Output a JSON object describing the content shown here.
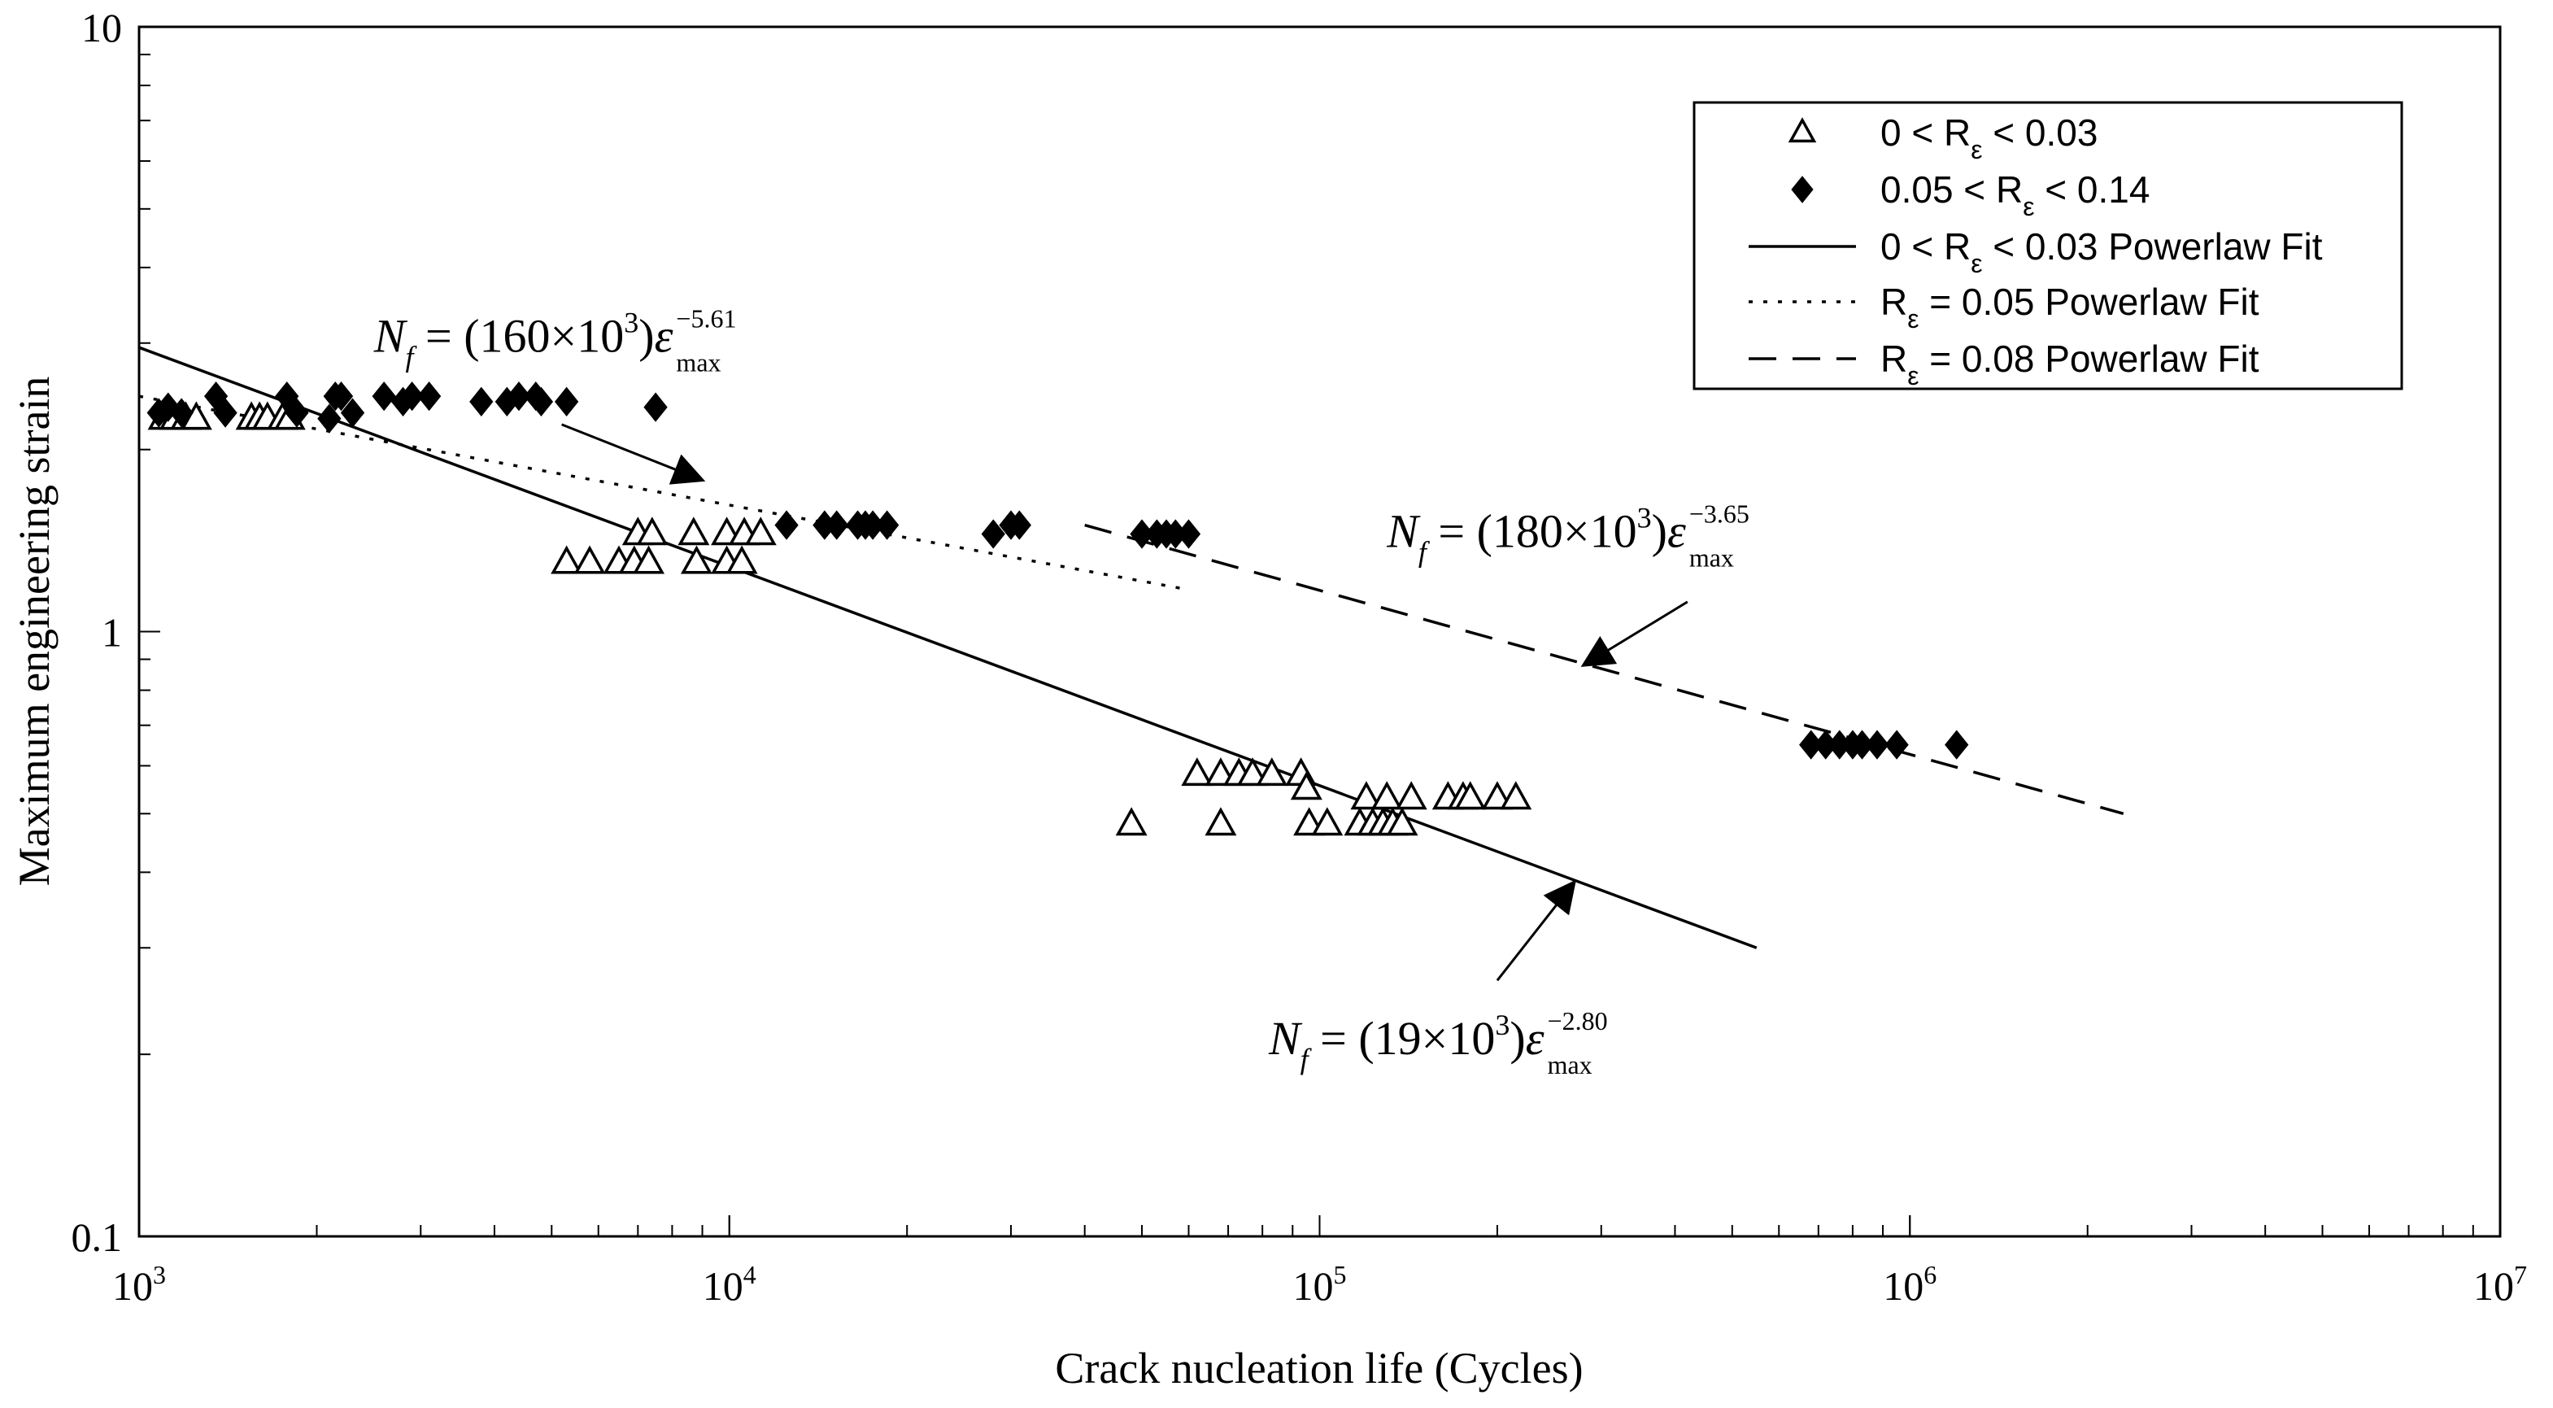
{
  "chart_data": {
    "type": "scatter",
    "xscale": "log",
    "yscale": "log",
    "xlim": [
      1000,
      10000000
    ],
    "ylim": [
      0.1,
      10
    ],
    "xlabel": "Crack nucleation life (Cycles)",
    "ylabel": "Maximum engineering strain",
    "x_ticks": [
      {
        "base": "10",
        "exp": "3"
      },
      {
        "base": "10",
        "exp": "4"
      },
      {
        "base": "10",
        "exp": "5"
      },
      {
        "base": "10",
        "exp": "6"
      },
      {
        "base": "10",
        "exp": "7"
      }
    ],
    "y_ticks": [
      "10",
      "1",
      "0.1"
    ],
    "legend_position": "top-right",
    "series": [
      {
        "name": "0 < Rε < 0.03",
        "legend_text": "0 < R",
        "legend_sub": "ε",
        "legend_tail": " < 0.03",
        "kind": "points",
        "marker": "triangle-open",
        "points": [
          [
            1100,
            2.25
          ],
          [
            1150,
            2.25
          ],
          [
            1200,
            2.25
          ],
          [
            1250,
            2.25
          ],
          [
            1550,
            2.25
          ],
          [
            1600,
            2.25
          ],
          [
            1650,
            2.25
          ],
          [
            1750,
            2.25
          ],
          [
            1800,
            2.25
          ],
          [
            5300,
            1.3
          ],
          [
            5800,
            1.3
          ],
          [
            6500,
            1.3
          ],
          [
            6900,
            1.3
          ],
          [
            7300,
            1.3
          ],
          [
            8800,
            1.3
          ],
          [
            9900,
            1.3
          ],
          [
            10500,
            1.3
          ],
          [
            7000,
            1.45
          ],
          [
            7400,
            1.45
          ],
          [
            8700,
            1.45
          ],
          [
            9900,
            1.45
          ],
          [
            10600,
            1.45
          ],
          [
            11300,
            1.45
          ],
          [
            48000,
            0.48
          ],
          [
            68000,
            0.48
          ],
          [
            96000,
            0.48
          ],
          [
            103000,
            0.48
          ],
          [
            117000,
            0.48
          ],
          [
            123000,
            0.48
          ],
          [
            128000,
            0.48
          ],
          [
            133000,
            0.48
          ],
          [
            138000,
            0.48
          ],
          [
            62000,
            0.58
          ],
          [
            68000,
            0.58
          ],
          [
            73000,
            0.58
          ],
          [
            77000,
            0.58
          ],
          [
            83000,
            0.58
          ],
          [
            93000,
            0.58
          ],
          [
            95000,
            0.55
          ],
          [
            120000,
            0.53
          ],
          [
            130000,
            0.53
          ],
          [
            143000,
            0.53
          ],
          [
            165000,
            0.53
          ],
          [
            175000,
            0.53
          ],
          [
            180000,
            0.53
          ],
          [
            200000,
            0.53
          ],
          [
            215000,
            0.53
          ]
        ]
      },
      {
        "name": "0.05 < Rε < 0.14",
        "legend_text": "0.05 < R",
        "legend_sub": "ε",
        "legend_tail": " < 0.14",
        "kind": "points",
        "marker": "diamond-filled",
        "points": [
          [
            1080,
            2.3
          ],
          [
            1120,
            2.35
          ],
          [
            1180,
            2.3
          ],
          [
            1350,
            2.45
          ],
          [
            1400,
            2.3
          ],
          [
            1780,
            2.45
          ],
          [
            1850,
            2.3
          ],
          [
            2100,
            2.25
          ],
          [
            2150,
            2.45
          ],
          [
            2200,
            2.45
          ],
          [
            2300,
            2.3
          ],
          [
            2600,
            2.45
          ],
          [
            2800,
            2.4
          ],
          [
            2900,
            2.45
          ],
          [
            3100,
            2.45
          ],
          [
            3800,
            2.4
          ],
          [
            4200,
            2.4
          ],
          [
            4400,
            2.45
          ],
          [
            4700,
            2.45
          ],
          [
            4800,
            2.4
          ],
          [
            5300,
            2.4
          ],
          [
            7500,
            2.35
          ],
          [
            12500,
            1.5
          ],
          [
            14500,
            1.5
          ],
          [
            15200,
            1.5
          ],
          [
            16500,
            1.5
          ],
          [
            17000,
            1.5
          ],
          [
            17500,
            1.5
          ],
          [
            18500,
            1.5
          ],
          [
            28000,
            1.45
          ],
          [
            30000,
            1.5
          ],
          [
            31000,
            1.5
          ],
          [
            50000,
            1.45
          ],
          [
            53000,
            1.45
          ],
          [
            55000,
            1.45
          ],
          [
            57000,
            1.45
          ],
          [
            60000,
            1.45
          ],
          [
            680000,
            0.65
          ],
          [
            720000,
            0.65
          ],
          [
            760000,
            0.65
          ],
          [
            800000,
            0.65
          ],
          [
            830000,
            0.65
          ],
          [
            880000,
            0.65
          ],
          [
            950000,
            0.65
          ],
          [
            1200000,
            0.65
          ]
        ]
      },
      {
        "name": "0 < Rε < 0.03 Powerlaw Fit",
        "legend_text": "0 < R",
        "legend_sub": "ε",
        "legend_tail": " < 0.03 Powerlaw Fit",
        "kind": "line",
        "style": "solid",
        "from": [
          1000,
          2.95
        ],
        "to": [
          550000,
          0.3
        ]
      },
      {
        "name": "Rε = 0.05 Powerlaw Fit",
        "legend_text": "R",
        "legend_sub": "ε",
        "legend_tail": " = 0.05 Powerlaw Fit",
        "kind": "line",
        "style": "dotted",
        "from": [
          1000,
          2.45
        ],
        "to": [
          58000,
          1.18
        ]
      },
      {
        "name": "Rε = 0.08 Powerlaw Fit",
        "legend_text": "R",
        "legend_sub": "ε",
        "legend_tail": " = 0.08 Powerlaw Fit",
        "kind": "line",
        "style": "dashed",
        "from": [
          40000,
          1.5
        ],
        "to": [
          2300000,
          0.5
        ]
      }
    ],
    "annotations": [
      {
        "id": "eq-5-61",
        "prefix": "N",
        "prefix_sub": "f",
        "coeff": " = (160×10",
        "coeff_exp": "3",
        "mid": ")",
        "var": "ε",
        "var_sub": "max",
        "var_exp": "−5.61",
        "text_at": [
          2500,
          2.9
        ],
        "arrow_from": [
          5200,
          2.2
        ],
        "arrow_to": [
          9000,
          1.78
        ]
      },
      {
        "id": "eq-3-65",
        "prefix": "N",
        "prefix_sub": "f",
        "coeff": " = (180×10",
        "coeff_exp": "3",
        "mid": ")",
        "var": "ε",
        "var_sub": "max",
        "var_exp": "−3.65",
        "text_at": [
          130000,
          1.38
        ],
        "arrow_from": [
          420000,
          1.12
        ],
        "arrow_to": [
          280000,
          0.88
        ]
      },
      {
        "id": "eq-2-80",
        "prefix": "N",
        "prefix_sub": "f",
        "coeff": " = (19×10",
        "coeff_exp": "3",
        "mid": ")",
        "var": "ε",
        "var_sub": "max",
        "var_exp": "−2.80",
        "text_at": [
          82000,
          0.2
        ],
        "arrow_from": [
          200000,
          0.265
        ],
        "arrow_to": [
          270000,
          0.385
        ]
      }
    ]
  }
}
